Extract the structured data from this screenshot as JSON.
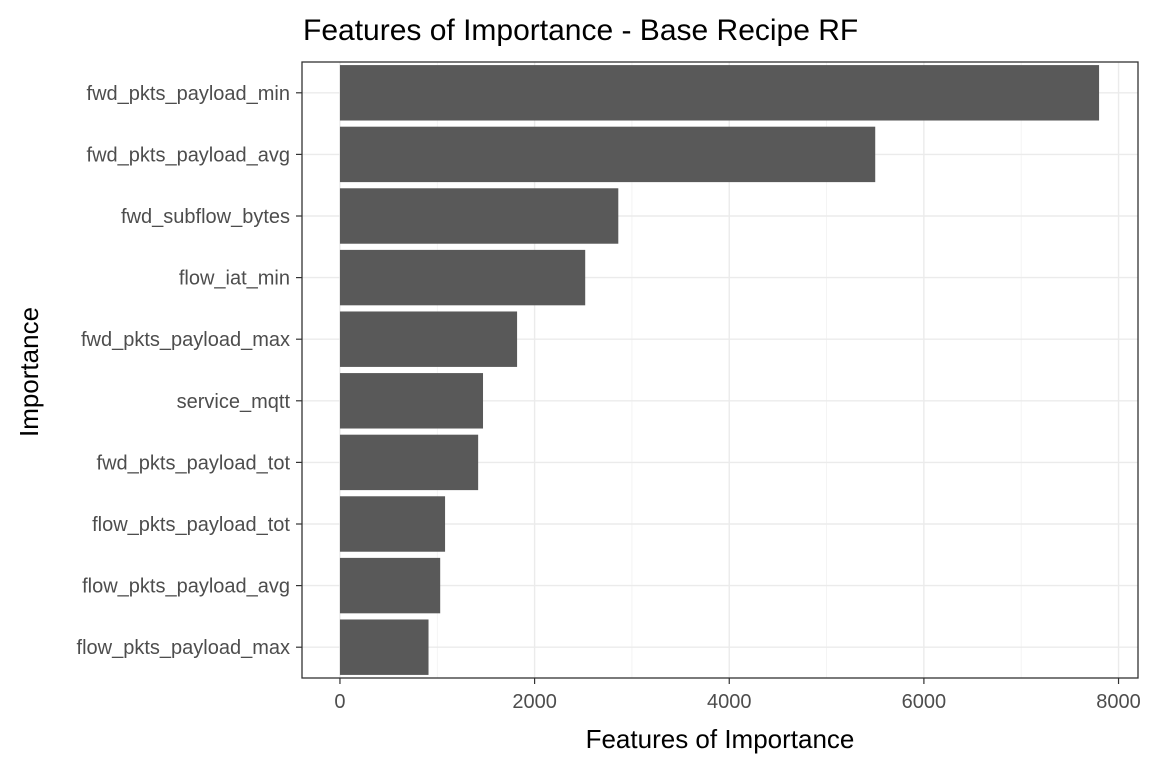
{
  "chart_data": {
    "type": "bar",
    "orientation": "horizontal",
    "title": "Features of Importance - Base Recipe RF",
    "xlabel": "Features of Importance",
    "ylabel": "Importance",
    "categories": [
      "fwd_pkts_payload_min",
      "fwd_pkts_payload_avg",
      "fwd_subflow_bytes",
      "flow_iat_min",
      "fwd_pkts_payload_max",
      "service_mqtt",
      "fwd_pkts_payload_tot",
      "flow_pkts_payload_tot",
      "flow_pkts_payload_avg",
      "flow_pkts_payload_max"
    ],
    "values": [
      7800,
      5500,
      2860,
      2520,
      1820,
      1470,
      1420,
      1080,
      1030,
      910
    ],
    "xlim": [
      -390,
      8200
    ],
    "x_ticks": [
      0,
      2000,
      4000,
      6000,
      8000
    ],
    "x_tick_labels": [
      "0",
      "2000",
      "4000",
      "6000",
      "8000"
    ],
    "grid": true,
    "legend": "none",
    "bar_color": "#595959",
    "theme": "bw"
  }
}
